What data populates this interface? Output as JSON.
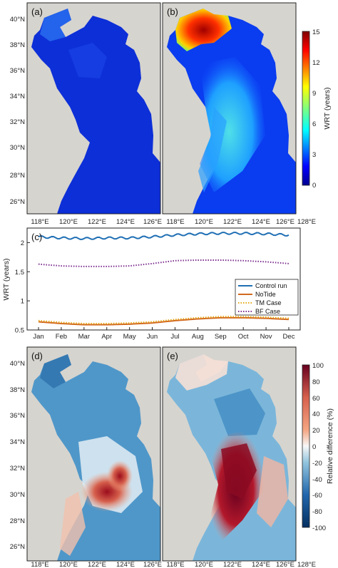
{
  "figure": {
    "top": {
      "panels": [
        "(a)",
        "(b)"
      ],
      "lat_ticks": [
        "40°N",
        "38°N",
        "36°N",
        "34°N",
        "32°N",
        "30°N",
        "28°N",
        "26°N"
      ],
      "lon_ticks": [
        "118°E",
        "120°E",
        "122°E",
        "124°E",
        "126°E",
        "128°E"
      ],
      "colorbar": {
        "label": "WRT (years)",
        "ticks": [
          "15",
          "12",
          "9",
          "6",
          "3",
          "0"
        ],
        "colormap": "jet"
      }
    },
    "bottom": {
      "panels": [
        "(d)",
        "(e)"
      ],
      "lat_ticks": [
        "40°N",
        "38°N",
        "36°N",
        "34°N",
        "32°N",
        "30°N",
        "28°N",
        "26°N"
      ],
      "lon_ticks": [
        "118°E",
        "120°E",
        "122°E",
        "124°E",
        "126°E",
        "128°E"
      ],
      "colorbar": {
        "label": "Relative difference (%)",
        "ticks": [
          "100",
          "80",
          "60",
          "40",
          "20",
          "0",
          "-20",
          "-40",
          "-60",
          "-80",
          "-100"
        ],
        "colormap": "diverging red-blue"
      }
    }
  },
  "chart_data": {
    "type": "line",
    "panel_label": "(c)",
    "ylabel": "WRT (years)",
    "xlabel": "",
    "categories": [
      "Jan",
      "Feb",
      "Mar",
      "Apr",
      "May",
      "Jun",
      "Jul",
      "Aug",
      "Sep",
      "Oct",
      "Nov",
      "Dec"
    ],
    "y_ticks": [
      "0.5",
      "1",
      "1.5",
      "2"
    ],
    "ylim": [
      0.5,
      2.25
    ],
    "legend_position": "bottom-right",
    "grid": false,
    "series": [
      {
        "name": "Control run",
        "color": "#1f6fb4",
        "style": "solid",
        "values": [
          2.1,
          2.08,
          2.07,
          2.08,
          2.08,
          2.1,
          2.13,
          2.15,
          2.16,
          2.16,
          2.15,
          2.13
        ]
      },
      {
        "name": "NoTide",
        "color": "#d2691e",
        "style": "solid",
        "values": [
          0.64,
          0.61,
          0.59,
          0.59,
          0.6,
          0.62,
          0.66,
          0.69,
          0.71,
          0.71,
          0.7,
          0.68
        ]
      },
      {
        "name": "TM Case",
        "color": "#e6a817",
        "style": "dotted",
        "values": [
          0.66,
          0.63,
          0.61,
          0.61,
          0.62,
          0.64,
          0.68,
          0.71,
          0.73,
          0.73,
          0.72,
          0.7
        ]
      },
      {
        "name": "BF Case",
        "color": "#7b2d8e",
        "style": "dotted",
        "values": [
          1.63,
          1.6,
          1.59,
          1.59,
          1.6,
          1.64,
          1.69,
          1.7,
          1.7,
          1.69,
          1.67,
          1.64
        ]
      }
    ]
  }
}
